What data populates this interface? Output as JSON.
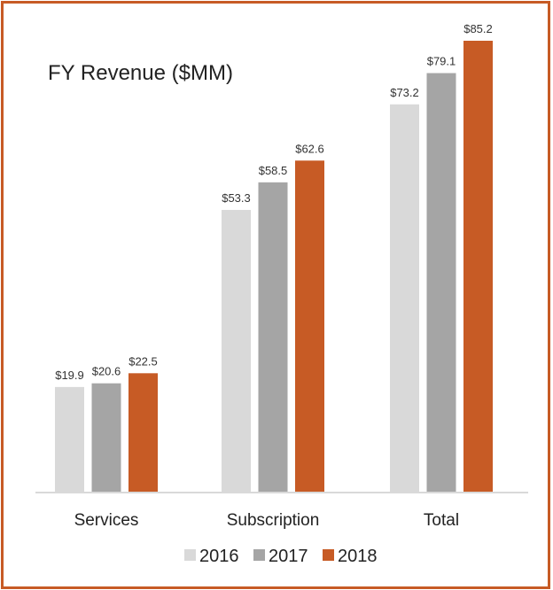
{
  "chart_data": {
    "type": "bar",
    "title": "FY Revenue ($MM)",
    "categories": [
      "Services",
      "Subscription",
      "Total"
    ],
    "series": [
      {
        "name": "2016",
        "color": "#d9d9d9",
        "values": [
          19.9,
          53.3,
          73.2
        ],
        "labels": [
          "$19.9",
          "$53.3",
          "$73.2"
        ]
      },
      {
        "name": "2017",
        "color": "#a5a5a5",
        "values": [
          20.6,
          58.5,
          79.1
        ],
        "labels": [
          "$20.6",
          "$58.5",
          "$79.1"
        ]
      },
      {
        "name": "2018",
        "color": "#c75b25",
        "values": [
          22.5,
          62.6,
          85.2
        ],
        "labels": [
          "$22.5",
          "$62.6",
          "$85.2"
        ]
      }
    ],
    "xlabel": "",
    "ylabel": "",
    "ylim": [
      0,
      85.2
    ],
    "grid": false,
    "legend_position": "bottom"
  }
}
